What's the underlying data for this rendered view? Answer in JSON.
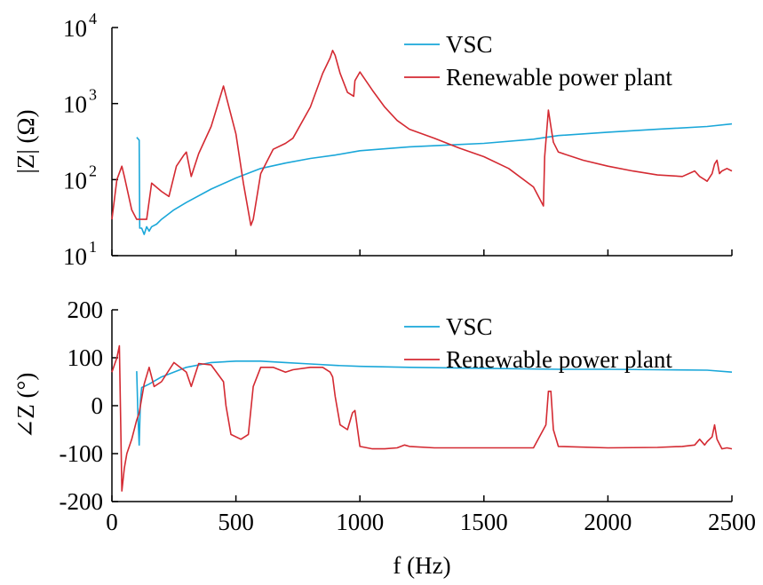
{
  "chart_data": [
    {
      "type": "line",
      "ylabel": "|Z| (Ω)",
      "yscale": "log",
      "ylim": [
        10,
        10000
      ],
      "xlim": [
        0,
        2500
      ],
      "y_tick_labels": [
        {
          "base": "10",
          "exp": "1"
        },
        {
          "base": "10",
          "exp": "2"
        },
        {
          "base": "10",
          "exp": "3"
        },
        {
          "base": "10",
          "exp": "4"
        }
      ],
      "legend_position": "top-right",
      "series": [
        {
          "name": "VSC",
          "color": "#1aa7d9",
          "x": [
            100,
            110,
            112,
            120,
            130,
            140,
            150,
            160,
            180,
            200,
            250,
            300,
            400,
            500,
            600,
            700,
            800,
            900,
            1000,
            1200,
            1500,
            1700,
            1800,
            2000,
            2200,
            2400,
            2500
          ],
          "y": [
            360,
            330,
            23,
            23,
            19,
            24,
            21,
            24,
            26,
            30,
            40,
            50,
            75,
            105,
            140,
            165,
            190,
            210,
            240,
            270,
            300,
            340,
            380,
            420,
            460,
            500,
            540
          ]
        },
        {
          "name": "Renewable power plant",
          "color": "#d42a32",
          "x": [
            0,
            20,
            40,
            50,
            80,
            100,
            110,
            140,
            160,
            200,
            230,
            260,
            290,
            300,
            320,
            350,
            400,
            450,
            500,
            530,
            560,
            570,
            600,
            650,
            700,
            730,
            800,
            850,
            880,
            890,
            900,
            920,
            950,
            975,
            980,
            1000,
            1050,
            1100,
            1150,
            1200,
            1300,
            1400,
            1500,
            1600,
            1700,
            1740,
            1745,
            1760,
            1770,
            1780,
            1800,
            1900,
            2000,
            2100,
            2200,
            2300,
            2350,
            2370,
            2390,
            2400,
            2420,
            2430,
            2440,
            2450,
            2460,
            2480,
            2500
          ],
          "y": [
            30,
            100,
            150,
            110,
            40,
            30,
            30,
            30,
            90,
            70,
            60,
            150,
            210,
            230,
            110,
            220,
            500,
            1700,
            400,
            90,
            25,
            30,
            120,
            250,
            300,
            350,
            900,
            2500,
            4000,
            5000,
            4300,
            2500,
            1400,
            1250,
            2000,
            2600,
            1500,
            900,
            600,
            460,
            350,
            260,
            200,
            140,
            80,
            45,
            200,
            820,
            500,
            310,
            230,
            180,
            150,
            130,
            115,
            110,
            130,
            110,
            100,
            95,
            120,
            160,
            180,
            120,
            130,
            140,
            130
          ]
        }
      ]
    },
    {
      "type": "line",
      "ylabel": "∠Z (°)",
      "xlabel": "f (Hz)",
      "ylim": [
        -200,
        200
      ],
      "xlim": [
        0,
        2500
      ],
      "x_ticks": [
        0,
        500,
        1000,
        1500,
        2000,
        2500
      ],
      "y_ticks": [
        -200,
        -100,
        0,
        100,
        200
      ],
      "legend_position": "top-right",
      "series": [
        {
          "name": "VSC",
          "color": "#1aa7d9",
          "x": [
            100,
            105,
            110,
            115,
            120,
            130,
            150,
            200,
            300,
            400,
            500,
            600,
            700,
            800,
            900,
            1000,
            1200,
            1500,
            1800,
            2000,
            2200,
            2400,
            2500
          ],
          "y": [
            72,
            -20,
            -82,
            10,
            38,
            40,
            45,
            60,
            80,
            90,
            93,
            93,
            90,
            87,
            84,
            82,
            80,
            78,
            76,
            76,
            75,
            74,
            70
          ]
        },
        {
          "name": "Renewable power plant",
          "color": "#d42a32",
          "x": [
            0,
            20,
            30,
            40,
            50,
            60,
            80,
            100,
            110,
            130,
            150,
            170,
            200,
            250,
            300,
            320,
            350,
            400,
            450,
            460,
            480,
            520,
            550,
            570,
            600,
            650,
            700,
            730,
            800,
            850,
            880,
            890,
            900,
            920,
            950,
            970,
            980,
            1000,
            1050,
            1100,
            1150,
            1180,
            1200,
            1300,
            1500,
            1700,
            1750,
            1760,
            1770,
            1780,
            1800,
            2000,
            2200,
            2300,
            2350,
            2370,
            2390,
            2400,
            2420,
            2430,
            2440,
            2450,
            2460,
            2480,
            2500
          ],
          "y": [
            70,
            100,
            125,
            -178,
            -130,
            -100,
            -70,
            -30,
            -15,
            45,
            80,
            40,
            50,
            90,
            70,
            40,
            88,
            85,
            50,
            0,
            -60,
            -70,
            -60,
            40,
            80,
            80,
            70,
            75,
            80,
            80,
            70,
            60,
            20,
            -40,
            -50,
            -15,
            -10,
            -85,
            -90,
            -90,
            -88,
            -82,
            -85,
            -88,
            -88,
            -88,
            -40,
            30,
            30,
            -50,
            -85,
            -88,
            -87,
            -85,
            -82,
            -70,
            -82,
            -75,
            -65,
            -40,
            -70,
            -80,
            -90,
            -88,
            -90
          ]
        }
      ]
    }
  ]
}
